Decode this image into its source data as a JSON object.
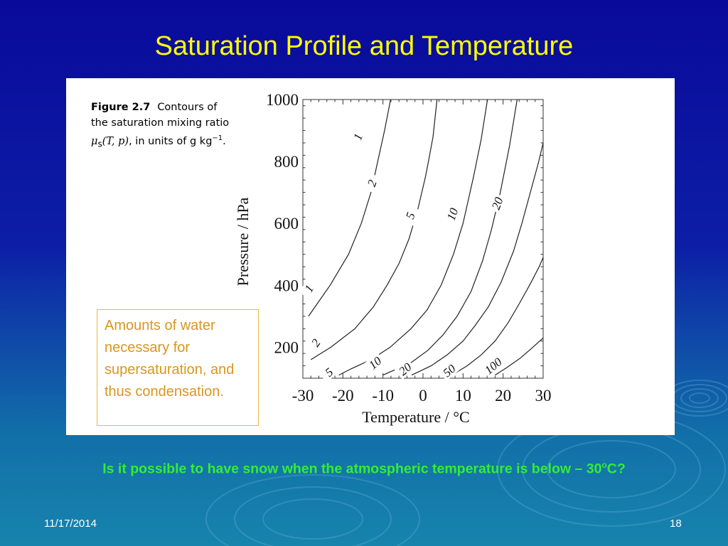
{
  "slide": {
    "title": "Saturation Profile and Temperature",
    "question_before": "Is it possible to have snow when the atmospheric temperature is below – 30",
    "question_degree": "o",
    "question_after": "C?",
    "date": "11/17/2014",
    "page_number": "18"
  },
  "caption": {
    "figure_number": "Figure 2.7",
    "line1": "Contours of",
    "line2": "the saturation mixing ratio",
    "mu": "μ",
    "mu_sub": "s",
    "args": "(T, p)",
    "units_text": ", in units of g kg",
    "units_sup": "−1",
    "period": "."
  },
  "note": {
    "text": "Amounts of water necessary for supersaturation, and thus condensation."
  },
  "colors": {
    "title": "#ffff00",
    "question": "#33ee33",
    "note_text": "#d8961e",
    "note_border": "#e8b94a"
  },
  "chart_data": {
    "type": "line",
    "xlabel": "Temperature / °C",
    "ylabel": "Pressure / hPa",
    "xlim": [
      -30,
      30
    ],
    "ylim": [
      100,
      1000
    ],
    "xticks": [
      "-30",
      "-20",
      "-10",
      "0",
      "10",
      "20",
      "30"
    ],
    "yticks": [
      "1000",
      "800",
      "600",
      "400",
      "200"
    ],
    "series": [
      {
        "name": "1",
        "values": [
          [
            -28.6,
            300
          ],
          [
            -23.2,
            400
          ],
          [
            -18.6,
            500
          ],
          [
            -15.4,
            600
          ],
          [
            -13.0,
            700
          ],
          [
            -11.3,
            800
          ],
          [
            -9.6,
            900
          ],
          [
            -8.1,
            1000
          ]
        ]
      },
      {
        "name": "2",
        "values": [
          [
            -28.0,
            160
          ],
          [
            -23.0,
            200
          ],
          [
            -17.0,
            260
          ],
          [
            -12.4,
            330
          ],
          [
            -9.0,
            400
          ],
          [
            -6.0,
            470
          ],
          [
            -3.5,
            550
          ],
          [
            -1.2,
            650
          ],
          [
            0.6,
            750
          ],
          [
            1.5,
            810
          ],
          [
            2.5,
            880
          ],
          [
            3.5,
            1000
          ]
        ]
      },
      {
        "name": "5",
        "values": [
          [
            -21.0,
            110
          ],
          [
            -18.0,
            130
          ],
          [
            -13.0,
            160
          ],
          [
            -8.2,
            200
          ],
          [
            -3.0,
            260
          ],
          [
            1.0,
            320
          ],
          [
            4.5,
            400
          ],
          [
            7.6,
            500
          ],
          [
            10.0,
            600
          ],
          [
            12.6,
            750
          ],
          [
            14.5,
            870
          ],
          [
            16.1,
            1000
          ]
        ]
      },
      {
        "name": "10",
        "values": [
          [
            -10.0,
            110
          ],
          [
            -6.5,
            130
          ],
          [
            -3.0,
            150
          ],
          [
            1.2,
            190
          ],
          [
            5.0,
            240
          ],
          [
            8.5,
            300
          ],
          [
            12.0,
            380
          ],
          [
            14.9,
            480
          ],
          [
            17.1,
            580
          ],
          [
            19.3,
            700
          ],
          [
            21.6,
            850
          ],
          [
            23.5,
            1000
          ]
        ]
      },
      {
        "name": "20",
        "values": [
          [
            -2.8,
            110
          ],
          [
            2.0,
            140
          ],
          [
            6.0,
            175
          ],
          [
            10.0,
            220
          ],
          [
            13.0,
            270
          ],
          [
            16.3,
            330
          ],
          [
            19.5,
            410
          ],
          [
            22.6,
            510
          ],
          [
            24.7,
            600
          ],
          [
            26.6,
            690
          ],
          [
            28.9,
            800
          ],
          [
            30.0,
            860
          ]
        ]
      },
      {
        "name": "50",
        "values": [
          [
            7.2,
            110
          ],
          [
            11.0,
            140
          ],
          [
            14.5,
            175
          ],
          [
            18.0,
            220
          ],
          [
            21.3,
            280
          ],
          [
            24.0,
            340
          ],
          [
            26.6,
            400
          ],
          [
            29.0,
            460
          ],
          [
            30.0,
            490
          ]
        ]
      },
      {
        "name": "100",
        "values": [
          [
            18.0,
            110
          ],
          [
            21.0,
            135
          ],
          [
            24.3,
            165
          ],
          [
            27.0,
            195
          ],
          [
            30.0,
            230
          ]
        ]
      }
    ],
    "contour_labels": [
      {
        "text": "1",
        "x": -16.3,
        "y": 880,
        "angle": -70
      },
      {
        "text": "1",
        "x": -28.5,
        "y": 390,
        "angle": -60
      },
      {
        "text": "2",
        "x": -12.8,
        "y": 730,
        "angle": -70
      },
      {
        "text": "2",
        "x": -26.8,
        "y": 215,
        "angle": -55
      },
      {
        "text": "5",
        "x": -3.2,
        "y": 625,
        "angle": -70
      },
      {
        "text": "5",
        "x": -23.5,
        "y": 120,
        "angle": -40
      },
      {
        "text": "10",
        "x": 7.3,
        "y": 630,
        "angle": -70
      },
      {
        "text": "10",
        "x": -12.0,
        "y": 150,
        "angle": -40
      },
      {
        "text": "20",
        "x": 18.5,
        "y": 665,
        "angle": -70
      },
      {
        "text": "20",
        "x": -4.5,
        "y": 130,
        "angle": -40
      },
      {
        "text": "50",
        "x": 6.5,
        "y": 125,
        "angle": -40
      },
      {
        "text": "100",
        "x": 17.5,
        "y": 140,
        "angle": -40
      }
    ],
    "legend": "none",
    "grid": false
  }
}
